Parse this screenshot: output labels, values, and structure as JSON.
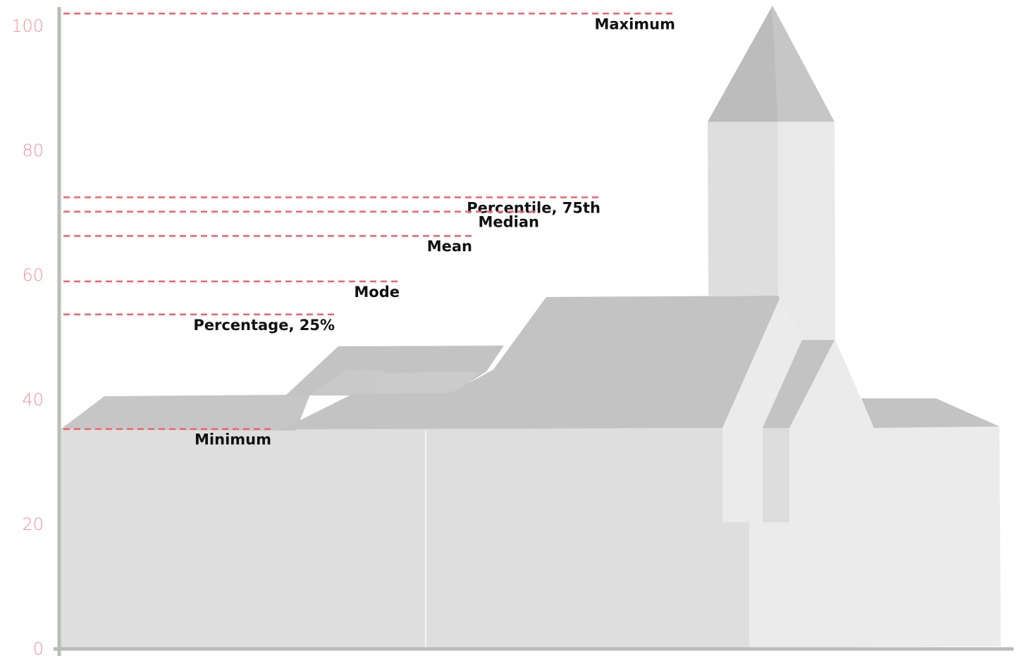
{
  "chart_data": {
    "type": "line",
    "title": "",
    "xlabel": "",
    "ylabel": "",
    "ylim": [
      0,
      103
    ],
    "yticks": [
      0,
      20,
      40,
      60,
      80,
      100
    ],
    "grid": false,
    "legend": "none",
    "colors": {
      "stat_line": "#f2606f",
      "tick_label": "#f0929d",
      "axis": "#b9bdba",
      "roof_dark": "#c3c3c3",
      "wall_mid": "#dedede",
      "wall_light": "#ebebeb",
      "label_text": "#111111"
    },
    "reference_lines": [
      {
        "name": "Maximum",
        "value": 102
      },
      {
        "name": "Percentile, 75th",
        "value": 72.5
      },
      {
        "name": "Median",
        "value": 70.2
      },
      {
        "name": "Mean",
        "value": 66.3
      },
      {
        "name": "Mode",
        "value": 59
      },
      {
        "name": "Percentage, 25%",
        "value": 53.7
      },
      {
        "name": "Minimum",
        "value": 35.3
      }
    ],
    "background_illustration": "church-silhouette"
  }
}
